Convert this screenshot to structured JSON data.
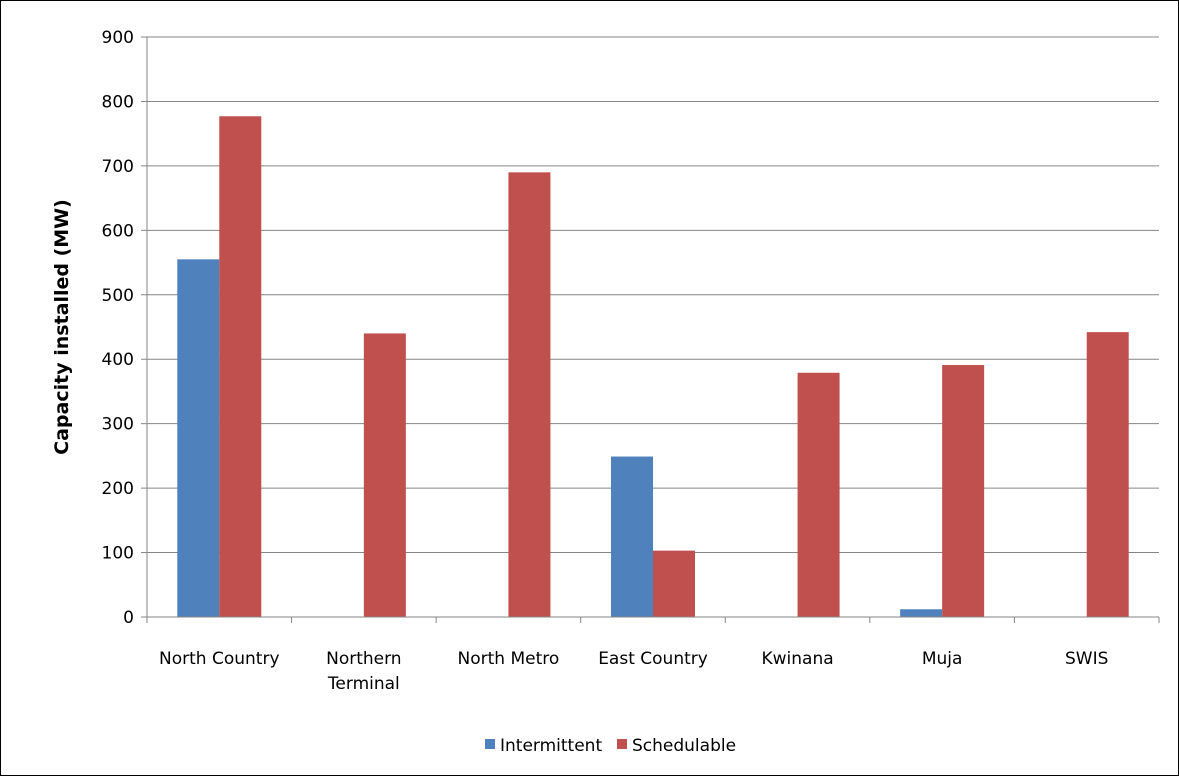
{
  "chart_data": {
    "type": "bar",
    "categories": [
      [
        "North Country"
      ],
      [
        "Northern",
        "Terminal"
      ],
      [
        "North Metro"
      ],
      [
        "East Country"
      ],
      [
        "Kwinana"
      ],
      [
        "Muja"
      ],
      [
        "SWIS"
      ]
    ],
    "series": [
      {
        "name": "Intermittent",
        "color": "#4f81bd",
        "values": [
          555,
          0,
          0,
          249,
          0,
          12,
          0
        ]
      },
      {
        "name": "Schedulable",
        "color": "#c0504d",
        "values": [
          777,
          440,
          690,
          103,
          379,
          391,
          442
        ]
      }
    ],
    "title": "",
    "xlabel": "",
    "ylabel": "Capacity installed (MW)",
    "ylim": [
      0,
      900
    ],
    "yticks": [
      0,
      100,
      200,
      300,
      400,
      500,
      600,
      700,
      800,
      900
    ],
    "grid": true,
    "legend": "bottom"
  }
}
